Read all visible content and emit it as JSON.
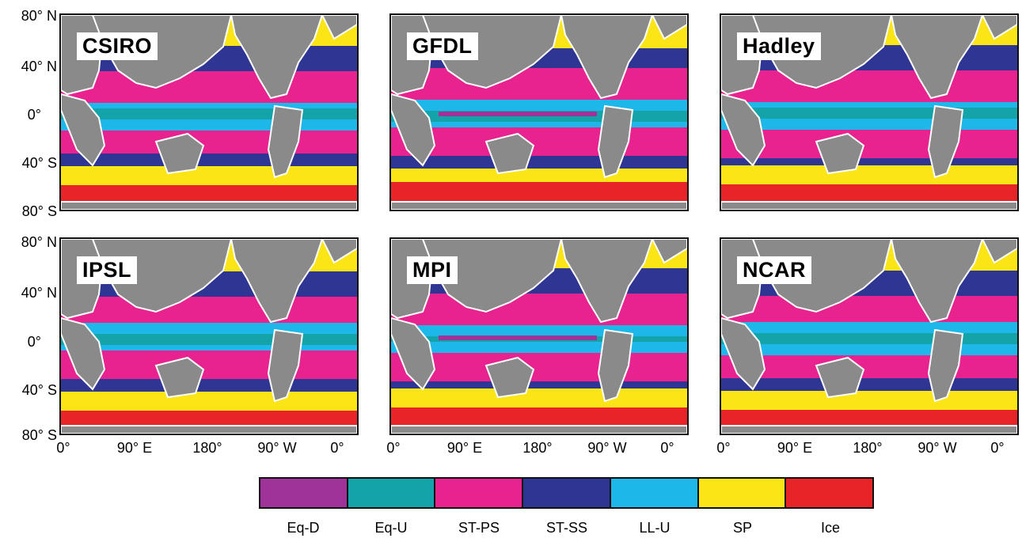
{
  "panels": [
    {
      "label": "CSIRO"
    },
    {
      "label": "GFDL"
    },
    {
      "label": "Hadley"
    },
    {
      "label": "IPSL"
    },
    {
      "label": "MPI"
    },
    {
      "label": "NCAR"
    }
  ],
  "axes": {
    "y_ticks": [
      "80° N",
      "40° N",
      "0°",
      "40° S",
      "80° S"
    ],
    "x_ticks": [
      "0°",
      "90° E",
      "180°",
      "90° W",
      "0°"
    ]
  },
  "legend": [
    {
      "label": "Eq-D",
      "color": "#a0339a"
    },
    {
      "label": "Eq-U",
      "color": "#13a3a8"
    },
    {
      "label": "ST-PS",
      "color": "#e8238f"
    },
    {
      "label": "ST-SS",
      "color": "#2e3593"
    },
    {
      "label": "LL-U",
      "color": "#1eb7ea"
    },
    {
      "label": "SP",
      "color": "#fbe517"
    },
    {
      "label": "Ice",
      "color": "#e92429"
    }
  ],
  "land_color": "#8a8a8a"
}
